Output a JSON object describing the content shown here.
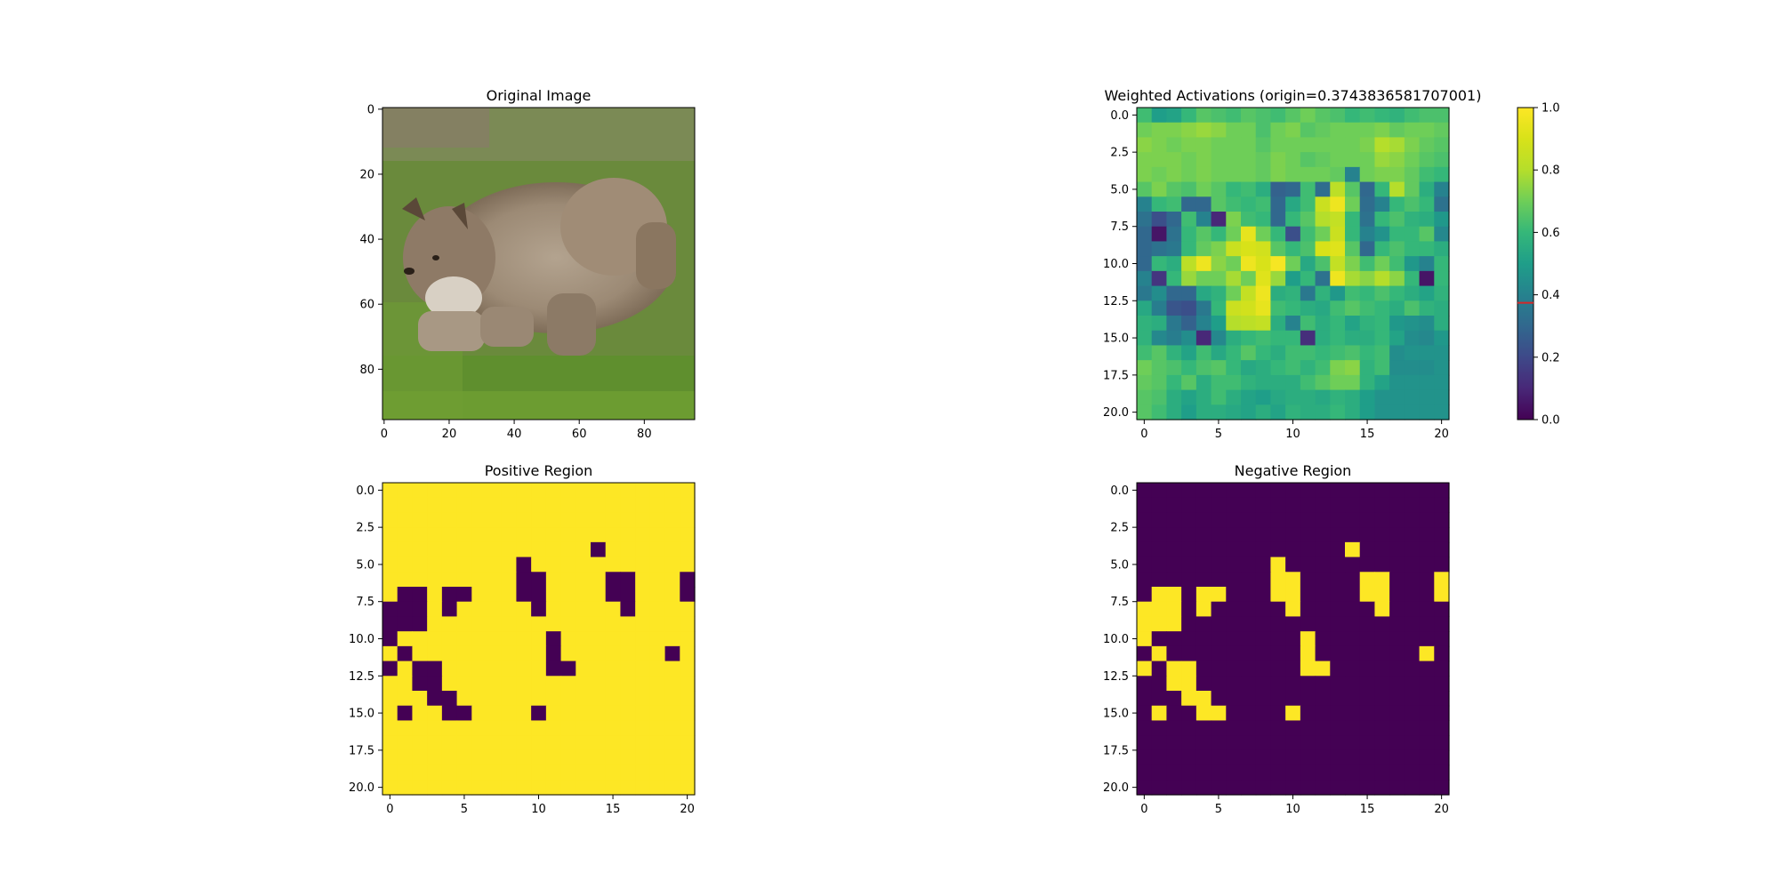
{
  "figure": {
    "panels": [
      {
        "id": "original",
        "title": "Original Image"
      },
      {
        "id": "activations",
        "title": "Weighted Activations (origin=0.3743836581707001)"
      },
      {
        "id": "positive",
        "title": "Positive Region"
      },
      {
        "id": "negative",
        "title": "Negative Region"
      }
    ]
  },
  "chart_data": [
    {
      "type": "heatmap",
      "title": "Original Image",
      "content": "photo of a bobcat walking on grass",
      "xticks": [
        "0",
        "20",
        "40",
        "60",
        "80"
      ],
      "yticks": [
        "0",
        "20",
        "40",
        "60",
        "80"
      ],
      "xlim": [
        -0.5,
        95.5
      ],
      "ylim": [
        95.5,
        -0.5
      ]
    },
    {
      "type": "heatmap",
      "title": "Weighted Activations (origin=0.3743836581707001)",
      "colormap": "viridis",
      "xticks": [
        "0",
        "5",
        "10",
        "15",
        "20"
      ],
      "yticks": [
        "0.0",
        "2.5",
        "5.0",
        "7.5",
        "10.0",
        "12.5",
        "15.0",
        "17.5",
        "20.0"
      ],
      "xlim": [
        -0.5,
        20.5
      ],
      "ylim": [
        20.5,
        -0.5
      ],
      "colorbar": {
        "ticks": [
          "0.0",
          "0.2",
          "0.4",
          "0.6",
          "0.8",
          "1.0"
        ],
        "range": [
          0,
          1
        ],
        "origin": 0.3743836581707001,
        "origin_color": "#d62728"
      },
      "values": [
        [
          0.62,
          0.5,
          0.52,
          0.6,
          0.66,
          0.64,
          0.62,
          0.66,
          0.64,
          0.62,
          0.66,
          0.7,
          0.66,
          0.64,
          0.6,
          0.62,
          0.6,
          0.58,
          0.62,
          0.64,
          0.64
        ],
        [
          0.7,
          0.72,
          0.72,
          0.74,
          0.76,
          0.74,
          0.7,
          0.7,
          0.64,
          0.7,
          0.72,
          0.66,
          0.68,
          0.7,
          0.7,
          0.7,
          0.72,
          0.68,
          0.7,
          0.7,
          0.68
        ],
        [
          0.74,
          0.72,
          0.7,
          0.72,
          0.72,
          0.7,
          0.7,
          0.7,
          0.66,
          0.7,
          0.7,
          0.7,
          0.7,
          0.7,
          0.7,
          0.72,
          0.8,
          0.78,
          0.72,
          0.68,
          0.66
        ],
        [
          0.72,
          0.72,
          0.72,
          0.7,
          0.72,
          0.7,
          0.7,
          0.7,
          0.68,
          0.72,
          0.7,
          0.66,
          0.68,
          0.7,
          0.7,
          0.7,
          0.76,
          0.74,
          0.7,
          0.66,
          0.64
        ],
        [
          0.72,
          0.7,
          0.72,
          0.7,
          0.72,
          0.7,
          0.7,
          0.7,
          0.68,
          0.72,
          0.7,
          0.7,
          0.7,
          0.68,
          0.4,
          0.7,
          0.72,
          0.72,
          0.68,
          0.62,
          0.6
        ],
        [
          0.66,
          0.72,
          0.66,
          0.64,
          0.7,
          0.66,
          0.6,
          0.62,
          0.56,
          0.28,
          0.3,
          0.62,
          0.32,
          0.82,
          0.66,
          0.3,
          0.6,
          0.8,
          0.68,
          0.56,
          0.4
        ],
        [
          0.4,
          0.6,
          0.62,
          0.3,
          0.3,
          0.66,
          0.62,
          0.6,
          0.62,
          0.3,
          0.54,
          0.62,
          0.86,
          0.96,
          0.7,
          0.32,
          0.4,
          0.6,
          0.64,
          0.6,
          0.34
        ],
        [
          0.34,
          0.22,
          0.3,
          0.62,
          0.4,
          0.1,
          0.72,
          0.62,
          0.6,
          0.3,
          0.6,
          0.66,
          0.8,
          0.84,
          0.6,
          0.34,
          0.6,
          0.64,
          0.58,
          0.56,
          0.48
        ],
        [
          0.3,
          0.05,
          0.34,
          0.6,
          0.66,
          0.6,
          0.7,
          0.94,
          0.7,
          0.6,
          0.22,
          0.62,
          0.7,
          0.86,
          0.6,
          0.4,
          0.46,
          0.6,
          0.6,
          0.66,
          0.42
        ],
        [
          0.3,
          0.34,
          0.36,
          0.6,
          0.68,
          0.72,
          0.86,
          0.9,
          0.88,
          0.66,
          0.6,
          0.64,
          0.9,
          0.92,
          0.66,
          0.3,
          0.6,
          0.64,
          0.6,
          0.6,
          0.56
        ],
        [
          0.3,
          0.6,
          0.56,
          0.82,
          0.96,
          0.74,
          0.7,
          0.96,
          0.9,
          0.98,
          0.7,
          0.54,
          0.64,
          0.84,
          0.72,
          0.62,
          0.7,
          0.62,
          0.48,
          0.4,
          0.6
        ],
        [
          0.4,
          0.14,
          0.6,
          0.76,
          0.7,
          0.7,
          0.78,
          0.7,
          0.92,
          0.76,
          0.5,
          0.6,
          0.34,
          0.96,
          0.78,
          0.74,
          0.8,
          0.74,
          0.6,
          0.05,
          0.6
        ],
        [
          0.36,
          0.44,
          0.3,
          0.3,
          0.54,
          0.58,
          0.7,
          0.84,
          0.96,
          0.56,
          0.58,
          0.36,
          0.58,
          0.48,
          0.62,
          0.6,
          0.64,
          0.6,
          0.56,
          0.52,
          0.58
        ],
        [
          0.54,
          0.38,
          0.24,
          0.22,
          0.36,
          0.6,
          0.86,
          0.88,
          0.94,
          0.62,
          0.6,
          0.56,
          0.54,
          0.62,
          0.66,
          0.62,
          0.6,
          0.56,
          0.64,
          0.58,
          0.56
        ],
        [
          0.58,
          0.56,
          0.36,
          0.28,
          0.4,
          0.5,
          0.8,
          0.82,
          0.84,
          0.56,
          0.4,
          0.62,
          0.56,
          0.6,
          0.52,
          0.58,
          0.6,
          0.48,
          0.46,
          0.44,
          0.56
        ],
        [
          0.58,
          0.42,
          0.38,
          0.44,
          0.1,
          0.42,
          0.56,
          0.6,
          0.62,
          0.6,
          0.6,
          0.12,
          0.56,
          0.6,
          0.56,
          0.56,
          0.6,
          0.52,
          0.44,
          0.42,
          0.48
        ],
        [
          0.62,
          0.66,
          0.58,
          0.52,
          0.62,
          0.54,
          0.6,
          0.66,
          0.6,
          0.56,
          0.62,
          0.62,
          0.6,
          0.62,
          0.64,
          0.6,
          0.62,
          0.44,
          0.46,
          0.46,
          0.46
        ],
        [
          0.7,
          0.66,
          0.64,
          0.6,
          0.64,
          0.66,
          0.6,
          0.54,
          0.56,
          0.6,
          0.62,
          0.58,
          0.62,
          0.72,
          0.74,
          0.58,
          0.62,
          0.44,
          0.44,
          0.44,
          0.46
        ],
        [
          0.68,
          0.66,
          0.6,
          0.66,
          0.56,
          0.62,
          0.62,
          0.58,
          0.56,
          0.56,
          0.56,
          0.62,
          0.66,
          0.7,
          0.7,
          0.58,
          0.52,
          0.46,
          0.46,
          0.46,
          0.46
        ],
        [
          0.66,
          0.64,
          0.56,
          0.52,
          0.56,
          0.62,
          0.56,
          0.52,
          0.5,
          0.54,
          0.56,
          0.56,
          0.54,
          0.58,
          0.56,
          0.5,
          0.46,
          0.46,
          0.46,
          0.46,
          0.46
        ],
        [
          0.66,
          0.62,
          0.56,
          0.5,
          0.56,
          0.56,
          0.54,
          0.52,
          0.56,
          0.52,
          0.58,
          0.56,
          0.56,
          0.6,
          0.56,
          0.5,
          0.46,
          0.46,
          0.46,
          0.46,
          0.46
        ]
      ]
    },
    {
      "type": "heatmap",
      "title": "Positive Region",
      "colormap": "viridis",
      "xticks": [
        "0",
        "5",
        "10",
        "15",
        "20"
      ],
      "yticks": [
        "0.0",
        "2.5",
        "5.0",
        "7.5",
        "10.0",
        "12.5",
        "15.0",
        "17.5",
        "20.0"
      ],
      "xlim": [
        -0.5,
        20.5
      ],
      "ylim": [
        20.5,
        -0.5
      ],
      "values": [
        [
          1,
          1,
          1,
          1,
          1,
          1,
          1,
          1,
          1,
          1,
          1,
          1,
          1,
          1,
          1,
          1,
          1,
          1,
          1,
          1,
          1
        ],
        [
          1,
          1,
          1,
          1,
          1,
          1,
          1,
          1,
          1,
          1,
          1,
          1,
          1,
          1,
          1,
          1,
          1,
          1,
          1,
          1,
          1
        ],
        [
          1,
          1,
          1,
          1,
          1,
          1,
          1,
          1,
          1,
          1,
          1,
          1,
          1,
          1,
          1,
          1,
          1,
          1,
          1,
          1,
          1
        ],
        [
          1,
          1,
          1,
          1,
          1,
          1,
          1,
          1,
          1,
          1,
          1,
          1,
          1,
          1,
          1,
          1,
          1,
          1,
          1,
          1,
          1
        ],
        [
          1,
          1,
          1,
          1,
          1,
          1,
          1,
          1,
          1,
          1,
          1,
          1,
          1,
          1,
          0,
          1,
          1,
          1,
          1,
          1,
          1
        ],
        [
          1,
          1,
          1,
          1,
          1,
          1,
          1,
          1,
          1,
          0,
          1,
          1,
          1,
          1,
          1,
          1,
          1,
          1,
          1,
          1,
          1
        ],
        [
          1,
          1,
          1,
          1,
          1,
          1,
          1,
          1,
          1,
          0,
          0,
          1,
          1,
          1,
          1,
          0,
          0,
          1,
          1,
          1,
          0
        ],
        [
          1,
          0,
          0,
          1,
          0,
          0,
          1,
          1,
          1,
          0,
          0,
          1,
          1,
          1,
          1,
          0,
          0,
          1,
          1,
          1,
          0
        ],
        [
          0,
          0,
          0,
          1,
          0,
          1,
          1,
          1,
          1,
          1,
          0,
          1,
          1,
          1,
          1,
          1,
          0,
          1,
          1,
          1,
          1
        ],
        [
          0,
          0,
          0,
          1,
          1,
          1,
          1,
          1,
          1,
          1,
          1,
          1,
          1,
          1,
          1,
          1,
          1,
          1,
          1,
          1,
          1
        ],
        [
          0,
          1,
          1,
          1,
          1,
          1,
          1,
          1,
          1,
          1,
          1,
          0,
          1,
          1,
          1,
          1,
          1,
          1,
          1,
          1,
          1
        ],
        [
          1,
          0,
          1,
          1,
          1,
          1,
          1,
          1,
          1,
          1,
          1,
          0,
          1,
          1,
          1,
          1,
          1,
          1,
          1,
          0,
          1
        ],
        [
          0,
          1,
          0,
          0,
          1,
          1,
          1,
          1,
          1,
          1,
          1,
          0,
          0,
          1,
          1,
          1,
          1,
          1,
          1,
          1,
          1
        ],
        [
          1,
          1,
          0,
          0,
          1,
          1,
          1,
          1,
          1,
          1,
          1,
          1,
          1,
          1,
          1,
          1,
          1,
          1,
          1,
          1,
          1
        ],
        [
          1,
          1,
          1,
          0,
          0,
          1,
          1,
          1,
          1,
          1,
          1,
          1,
          1,
          1,
          1,
          1,
          1,
          1,
          1,
          1,
          1
        ],
        [
          1,
          0,
          1,
          1,
          0,
          0,
          1,
          1,
          1,
          1,
          0,
          1,
          1,
          1,
          1,
          1,
          1,
          1,
          1,
          1,
          1
        ],
        [
          1,
          1,
          1,
          1,
          1,
          1,
          1,
          1,
          1,
          1,
          1,
          1,
          1,
          1,
          1,
          1,
          1,
          1,
          1,
          1,
          1
        ],
        [
          1,
          1,
          1,
          1,
          1,
          1,
          1,
          1,
          1,
          1,
          1,
          1,
          1,
          1,
          1,
          1,
          1,
          1,
          1,
          1,
          1
        ],
        [
          1,
          1,
          1,
          1,
          1,
          1,
          1,
          1,
          1,
          1,
          1,
          1,
          1,
          1,
          1,
          1,
          1,
          1,
          1,
          1,
          1
        ],
        [
          1,
          1,
          1,
          1,
          1,
          1,
          1,
          1,
          1,
          1,
          1,
          1,
          1,
          1,
          1,
          1,
          1,
          1,
          1,
          1,
          1
        ],
        [
          1,
          1,
          1,
          1,
          1,
          1,
          1,
          1,
          1,
          1,
          1,
          1,
          1,
          1,
          1,
          1,
          1,
          1,
          1,
          1,
          1
        ]
      ]
    },
    {
      "type": "heatmap",
      "title": "Negative Region",
      "colormap": "viridis",
      "xticks": [
        "0",
        "5",
        "10",
        "15",
        "20"
      ],
      "yticks": [
        "0.0",
        "2.5",
        "5.0",
        "7.5",
        "10.0",
        "12.5",
        "15.0",
        "17.5",
        "20.0"
      ],
      "xlim": [
        -0.5,
        20.5
      ],
      "ylim": [
        20.5,
        -0.5
      ],
      "values_note": "complement of Positive Region"
    }
  ]
}
